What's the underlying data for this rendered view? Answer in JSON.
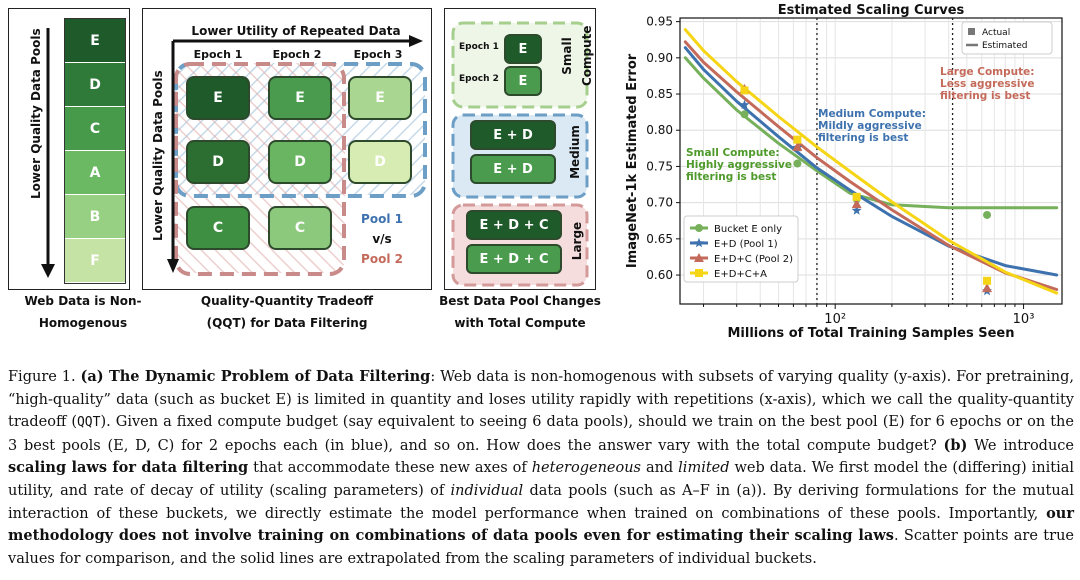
{
  "panel_a": {
    "pools": [
      {
        "label": "E",
        "color": "#1e5a2a"
      },
      {
        "label": "D",
        "color": "#2f7a38"
      },
      {
        "label": "C",
        "color": "#479a4a"
      },
      {
        "label": "A",
        "color": "#6cb963"
      },
      {
        "label": "B",
        "color": "#97cf83"
      },
      {
        "label": "F",
        "color": "#c6e3a6"
      }
    ],
    "axis_label": "Lower Quality Data Pools",
    "caption_line1": "Web Data is Non-",
    "caption_line2": "Homogenous"
  },
  "panel_b": {
    "top_label": "Lower Utility of Repeated Data",
    "side_label": "Lower Quality Data Pools",
    "epochs": [
      "Epoch 1",
      "Epoch 2",
      "Epoch 3"
    ],
    "rows": [
      [
        "E",
        "E",
        "E"
      ],
      [
        "D",
        "D",
        "D"
      ],
      [
        "C",
        "C"
      ]
    ],
    "pool1": "Pool 1",
    "vs": "v/s",
    "pool2": "Pool 2",
    "caption_line1": "Quality-Quantity Tradeoff",
    "caption_line2": "(QQT) for Data Filtering"
  },
  "panel_c": {
    "small_epochs": [
      "Epoch 1",
      "Epoch 2"
    ],
    "small_blocks": [
      "E",
      "E"
    ],
    "small_label": "Small Compute",
    "small_label_1": "Small",
    "small_label_2": "Compute",
    "medium_blocks": [
      "E + D",
      "E + D"
    ],
    "medium_label": "Medium",
    "large_blocks": [
      "E + D + C",
      "E + D + C"
    ],
    "large_label": "Large",
    "caption_line1": "Best Data Pool Changes",
    "caption_line2": "with Total Compute"
  },
  "chart_data": {
    "type": "line",
    "title": "Estimated Scaling Curves",
    "xlabel": "Millions of Total Training Samples Seen",
    "ylabel": "ImageNet-1k Estimated Error",
    "xscale": "log",
    "xlim": [
      15,
      1600
    ],
    "ylim": [
      0.56,
      0.955
    ],
    "yticks": [
      0.6,
      0.65,
      0.7,
      0.75,
      0.8,
      0.85,
      0.9,
      0.95
    ],
    "ytick_labels": [
      "0.60",
      "0.65",
      "0.70",
      "0.75",
      "0.80",
      "0.85",
      "0.90",
      "0.95"
    ],
    "xticks": [
      100,
      1000
    ],
    "xtick_labels": [
      "10²",
      "10³"
    ],
    "vlines": [
      80,
      420
    ],
    "legend_top": {
      "actual": "Actual",
      "estimated": "Estimated"
    },
    "series": [
      {
        "name": "Bucket E only",
        "color": "#76b05a",
        "marker": "circle",
        "x": [
          16,
          20,
          30,
          50,
          80,
          120,
          200,
          400,
          800,
          1500
        ],
        "y": [
          0.9,
          0.872,
          0.828,
          0.782,
          0.744,
          0.713,
          0.697,
          0.693,
          0.693,
          0.693
        ],
        "actual_x": [
          33,
          63,
          130,
          640
        ],
        "actual_y": [
          0.822,
          0.754,
          0.705,
          0.683
        ]
      },
      {
        "name": "E+D (Pool 1)",
        "color": "#3d72ae",
        "marker": "star",
        "x": [
          16,
          20,
          30,
          50,
          80,
          120,
          200,
          400,
          800,
          1500
        ],
        "y": [
          0.914,
          0.884,
          0.84,
          0.791,
          0.748,
          0.717,
          0.681,
          0.64,
          0.613,
          0.6
        ],
        "actual_x": [
          33,
          63,
          130,
          640
        ],
        "actual_y": [
          0.835,
          0.776,
          0.689,
          0.578
        ]
      },
      {
        "name": "E+D+C (Pool 2)",
        "color": "#c46a5a",
        "marker": "triangle",
        "x": [
          16,
          20,
          30,
          50,
          80,
          120,
          200,
          400,
          800,
          1500
        ],
        "y": [
          0.922,
          0.894,
          0.853,
          0.805,
          0.762,
          0.729,
          0.69,
          0.641,
          0.603,
          0.58
        ],
        "actual_x": [
          33,
          63,
          130,
          640
        ],
        "actual_y": [
          0.857,
          0.777,
          0.698,
          0.582
        ]
      },
      {
        "name": "E+D+C+A",
        "color": "#f5d515",
        "marker": "square",
        "x": [
          16,
          20,
          30,
          50,
          80,
          120,
          200,
          400,
          800,
          1500
        ],
        "y": [
          0.939,
          0.91,
          0.867,
          0.819,
          0.777,
          0.743,
          0.701,
          0.648,
          0.604,
          0.575
        ],
        "actual_x": [
          33,
          63,
          130,
          640
        ],
        "actual_y": [
          0.855,
          0.787,
          0.708,
          0.592
        ]
      }
    ],
    "annotations": [
      {
        "text": [
          "Small Compute:",
          "Highly aggressive",
          "filtering is best"
        ],
        "color": "#4e9a2a"
      },
      {
        "text": [
          "Medium Compute:",
          "Mildly aggressive",
          "filtering is best"
        ],
        "color": "#3d72ae"
      },
      {
        "text": [
          "Large Compute:",
          "Less aggressive",
          "filtering is best"
        ],
        "color": "#c46a5a"
      }
    ]
  },
  "caption": {
    "fig_label": "Figure 1.",
    "a_label": "(a) The Dynamic Problem of Data Filtering",
    "a_text1": ": Web data is non-homogenous with subsets of varying quality (y-axis). For pretraining, “high-quality” data (such as bucket E) is limited in quantity and loses utility rapidly with repetitions (x-axis), which we call the quality-quantity tradeoff (",
    "qqt": "QQT",
    "a_text2": "). Given a fixed compute budget (say equivalent to seeing 6 data pools), should we train on the best pool (E) for 6 epochs or on the 3 best pools (E, D, C) for 2 epochs each (in blue), and so on. How does the answer vary with the total compute budget?",
    "b_label": "(b)",
    "b_text1": " We introduce ",
    "b_bold1": "scaling laws for data filtering",
    "b_text2": " that accommodate these new axes of ",
    "b_ital1": "heterogeneous",
    "b_text3": " and ",
    "b_ital2": "limited",
    "b_text4": " web data. We first model the (differing) initial utility, and rate of decay of utility (scaling parameters) of ",
    "b_ital3": "individual",
    "b_text5": " data pools (such as A–F in (a)). By deriving formulations for the mutual interaction of these buckets, we directly estimate the model performance when trained on combinations of these pools. Importantly, ",
    "b_bold2": "our methodology does not involve training on combinations of data pools even for estimating their scaling laws",
    "b_text6": ". Scatter points are true values for comparison, and the solid lines are extrapolated from the scaling parameters of individual buckets."
  }
}
